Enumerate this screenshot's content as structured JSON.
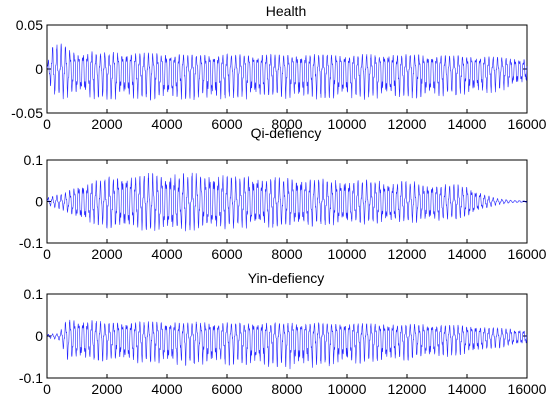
{
  "colors": {
    "series": "#0000ff",
    "axes": "#000000",
    "background": "#ffffff"
  },
  "chart_data": [
    {
      "type": "line",
      "title": "Health",
      "xlim": [
        0,
        16000
      ],
      "ylim": [
        -0.05,
        0.05
      ],
      "xticks": [
        0,
        2000,
        4000,
        6000,
        8000,
        10000,
        12000,
        14000,
        16000
      ],
      "yticks": [
        -0.05,
        0,
        0.05
      ],
      "xtick_labels": [
        "0",
        "2000",
        "4000",
        "6000",
        "8000",
        "10000",
        "12000",
        "14000",
        "16000"
      ],
      "ytick_labels": [
        "-0.05",
        "0",
        "0.05"
      ],
      "grid": false,
      "envelope": {
        "x": [
          0,
          200,
          500,
          1000,
          1500,
          2000,
          4000,
          6000,
          8000,
          10000,
          12000,
          14000,
          15000,
          16000
        ],
        "upper": [
          0.005,
          0.03,
          0.03,
          0.02,
          0.02,
          0.02,
          0.018,
          0.017,
          0.017,
          0.017,
          0.017,
          0.016,
          0.014,
          0.012
        ],
        "lower": [
          -0.005,
          -0.03,
          -0.035,
          -0.03,
          -0.035,
          -0.035,
          -0.037,
          -0.035,
          -0.035,
          -0.035,
          -0.035,
          -0.03,
          -0.027,
          -0.015
        ]
      },
      "series": [
        {
          "color": "#0000ff"
        }
      ]
    },
    {
      "type": "line",
      "title": "Qi-defiency",
      "xlim": [
        0,
        16000
      ],
      "ylim": [
        -0.1,
        0.1
      ],
      "xticks": [
        0,
        2000,
        4000,
        6000,
        8000,
        10000,
        12000,
        14000,
        16000
      ],
      "yticks": [
        -0.1,
        0,
        0.1
      ],
      "xtick_labels": [
        "0",
        "2000",
        "4000",
        "6000",
        "8000",
        "10000",
        "12000",
        "14000",
        "16000"
      ],
      "ytick_labels": [
        "-0.1",
        "0",
        "0.1"
      ],
      "grid": false,
      "envelope": {
        "x": [
          0,
          500,
          1000,
          2000,
          3000,
          4000,
          5000,
          6000,
          8000,
          10000,
          12000,
          13000,
          14000,
          14500,
          15000,
          15500,
          16000
        ],
        "upper": [
          0.01,
          0.02,
          0.04,
          0.06,
          0.068,
          0.07,
          0.07,
          0.065,
          0.06,
          0.055,
          0.05,
          0.045,
          0.04,
          0.02,
          0.008,
          0.003,
          0.002
        ],
        "lower": [
          -0.01,
          -0.02,
          -0.045,
          -0.065,
          -0.07,
          -0.072,
          -0.072,
          -0.068,
          -0.062,
          -0.058,
          -0.052,
          -0.05,
          -0.04,
          -0.02,
          -0.008,
          -0.003,
          -0.002
        ]
      },
      "series": [
        {
          "color": "#0000ff"
        }
      ]
    },
    {
      "type": "line",
      "title": "Yin-defiency",
      "xlim": [
        0,
        16000
      ],
      "ylim": [
        -0.1,
        0.1
      ],
      "xticks": [
        0,
        2000,
        4000,
        6000,
        8000,
        10000,
        12000,
        14000,
        16000
      ],
      "yticks": [
        -0.1,
        0,
        0.1
      ],
      "xtick_labels": [
        "0",
        "2000",
        "4000",
        "6000",
        "8000",
        "10000",
        "12000",
        "14000",
        "16000"
      ],
      "ytick_labels": [
        "-0.1",
        "0",
        "0.1"
      ],
      "grid": false,
      "envelope": {
        "x": [
          0,
          400,
          700,
          1000,
          2000,
          4000,
          6000,
          8000,
          10000,
          12000,
          14000,
          15000,
          16000
        ],
        "upper": [
          0.005,
          0.006,
          0.045,
          0.04,
          0.035,
          0.035,
          0.033,
          0.033,
          0.032,
          0.03,
          0.026,
          0.02,
          0.015
        ],
        "lower": [
          -0.005,
          -0.01,
          -0.06,
          -0.06,
          -0.065,
          -0.07,
          -0.07,
          -0.08,
          -0.07,
          -0.06,
          -0.045,
          -0.03,
          -0.02
        ]
      },
      "series": [
        {
          "color": "#0000ff"
        }
      ]
    }
  ]
}
